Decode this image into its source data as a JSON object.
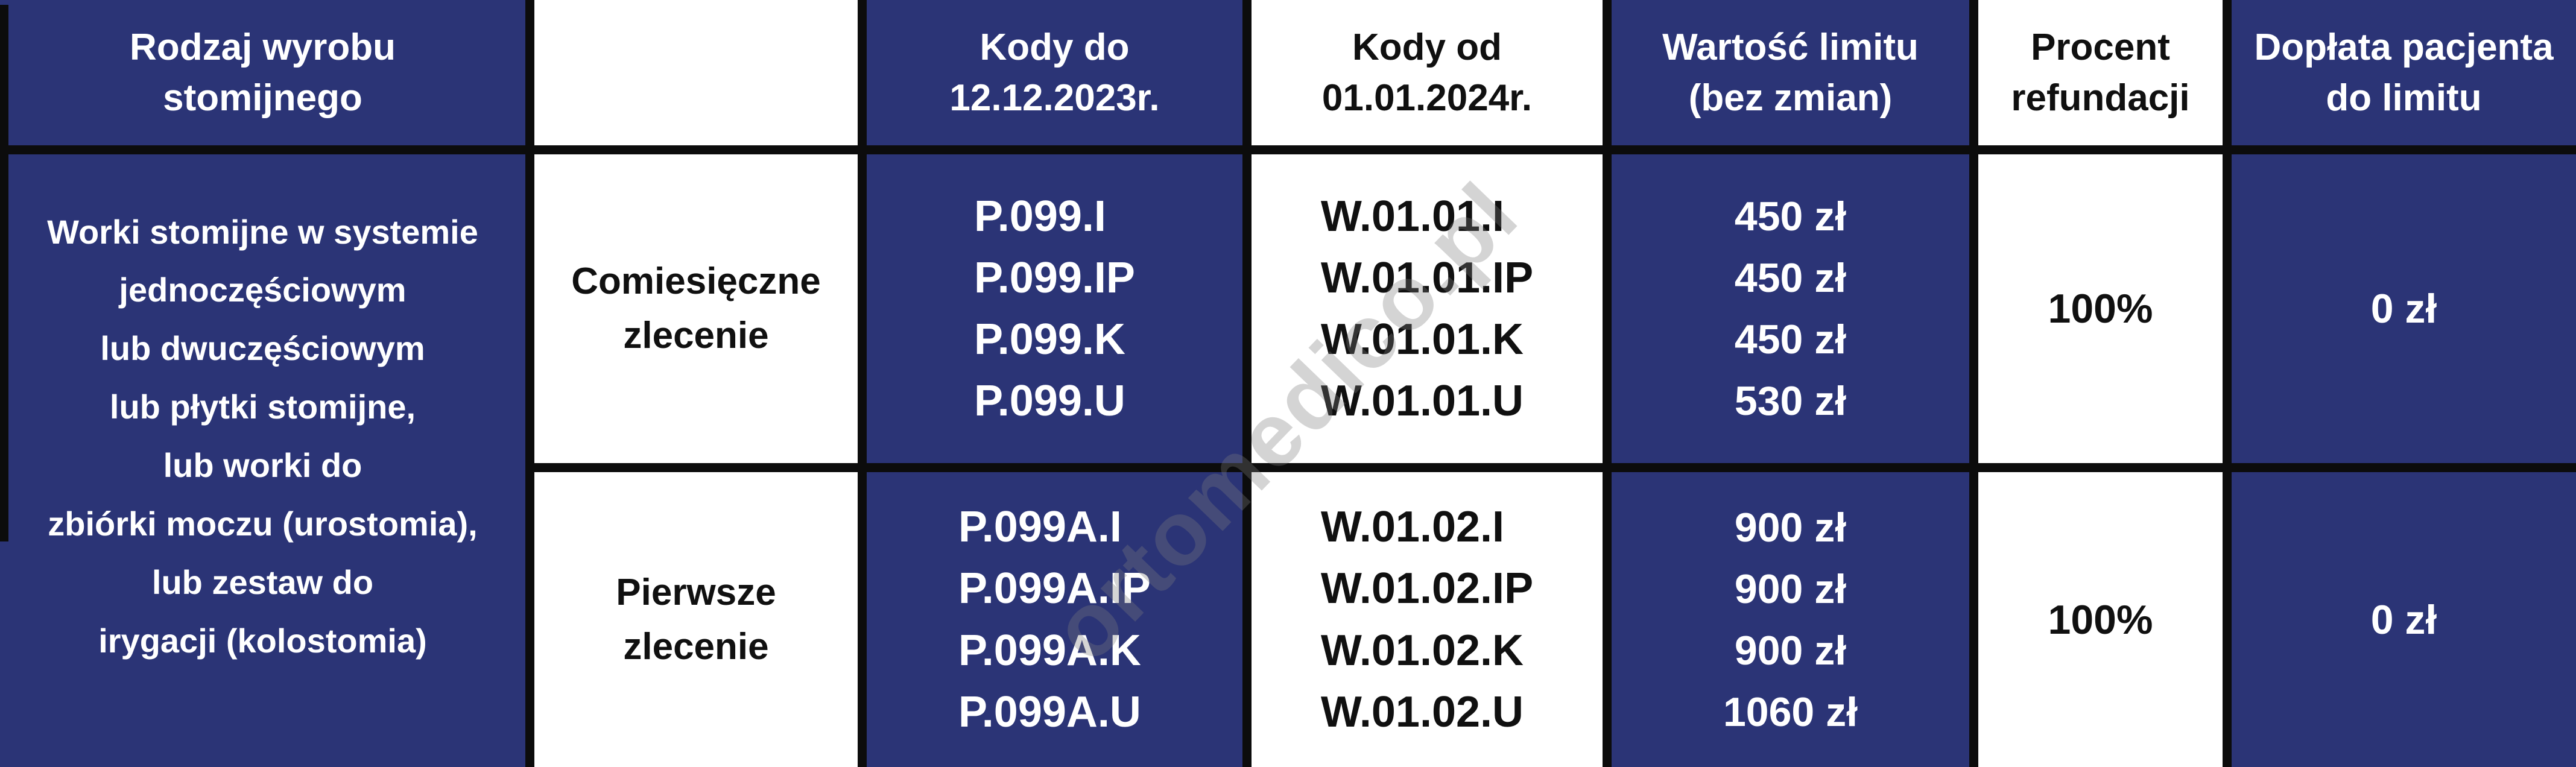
{
  "colors": {
    "navy": "#2b3476",
    "grid_black": "#0c0c0c",
    "cell_white": "#ffffff",
    "text_dark": "#101010",
    "watermark_gray": "#7d7d7d"
  },
  "watermark": {
    "text": "ortomedico.pl"
  },
  "table": {
    "headers": {
      "product": "Rodzaj wyrobu\nstomijnego",
      "order": "",
      "codes_old": "Kody do\n12.12.2023r.",
      "codes_new": "Kody od\n01.01.2024r.",
      "limit": "Wartość limitu\n(bez zmian)",
      "refund": "Procent\nrefundacji",
      "copay": "Dopłata pacjenta\ndo limitu"
    },
    "product_group": "Worki stomijne w systemie\njednoczęściowym\nlub dwuczęściowym\nlub płytki stomijne,\nlub worki do\nzbiórki moczu (urostomia),\nlub zestaw do\nirygacji (kolostomia)",
    "rows": [
      {
        "order_type": "Comiesięczne\nzlecenie",
        "codes_old": [
          "P.099.I",
          "P.099.IP",
          "P.099.K",
          "P.099.U"
        ],
        "codes_new": [
          "W.01.01.I",
          "W.01.01.IP",
          "W.01.01.K",
          "W.01.01.U"
        ],
        "limit_values": [
          "450 zł",
          "450 zł",
          "450 zł",
          "530 zł"
        ],
        "refund_percent": "100%",
        "patient_copay": "0 zł"
      },
      {
        "order_type": "Pierwsze\nzlecenie",
        "codes_old": [
          "P.099A.I",
          "P.099A.IP",
          "P.099A.K",
          "P.099A.U"
        ],
        "codes_new": [
          "W.01.02.I",
          "W.01.02.IP",
          "W.01.02.K",
          "W.01.02.U"
        ],
        "limit_values": [
          "900 zł",
          "900 zł",
          "900 zł",
          "1060 zł"
        ],
        "refund_percent": "100%",
        "patient_copay": "0 zł"
      }
    ]
  }
}
